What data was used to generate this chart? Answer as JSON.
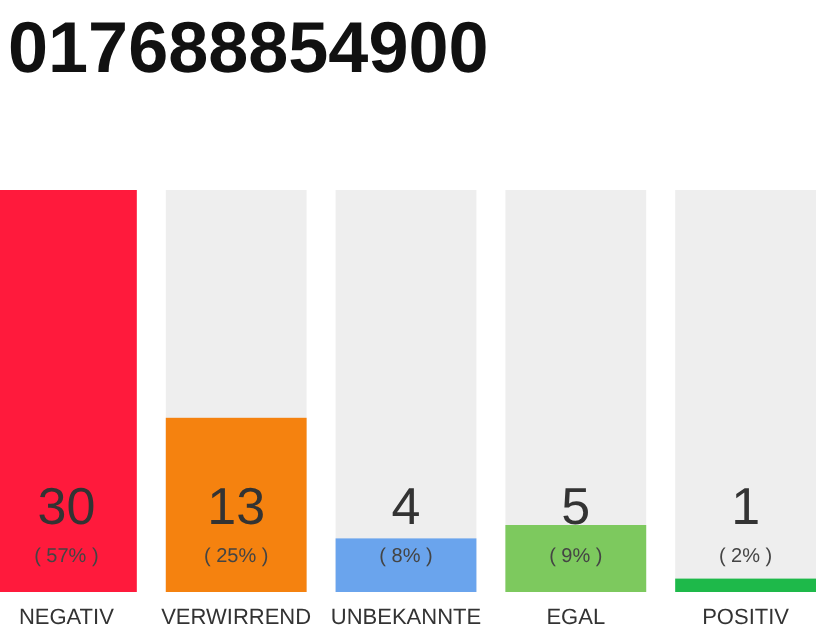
{
  "chart_data": {
    "type": "bar",
    "title": "017688854900",
    "categories": [
      "NEGATIV",
      "VERWIRREND",
      "UNBEKANNTE",
      "EGAL",
      "POSITIV"
    ],
    "values": [
      30,
      13,
      4,
      5,
      1
    ],
    "colors": [
      "#ff1a3c",
      "#f5820f",
      "#6aa4ed",
      "#7dc95e",
      "#1eb94a"
    ],
    "data_labels": true,
    "annotations": [
      "( 57% )",
      "( 25% )",
      "( 8% )",
      "( 9% )",
      "( 2% )"
    ]
  }
}
